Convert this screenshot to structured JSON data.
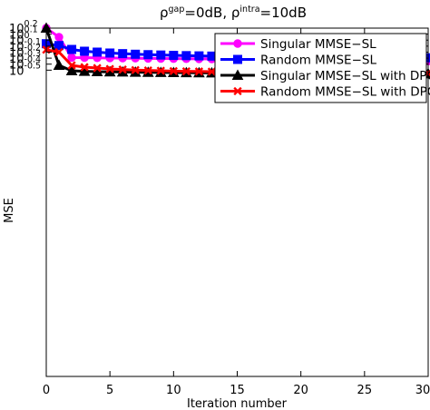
{
  "chart_data": {
    "type": "line",
    "title": {
      "rho1": "ρ",
      "sup1": "gap",
      "mid": "=0dB, ",
      "rho2": "ρ",
      "sup2": "intra",
      "end": "=10dB"
    },
    "xlabel": "Iteration number",
    "ylabel": "MSE",
    "xlim": [
      0,
      30
    ],
    "y_log_exponent_range": [
      -5.6,
      0.2
    ],
    "y_scale": "log",
    "x_ticks": [
      0,
      5,
      10,
      15,
      20,
      25,
      30
    ],
    "y_ticks": [
      {
        "value": 0.2,
        "base": "10",
        "exp": "0.2"
      },
      {
        "value": 0.1,
        "base": "10",
        "exp": "0.1"
      },
      {
        "value": 0,
        "base": "10",
        "exp": "0"
      },
      {
        "value": -0.1,
        "base": "10",
        "exp": "-0.1"
      },
      {
        "value": -0.2,
        "base": "10",
        "exp": "-0.2"
      },
      {
        "value": -0.3,
        "base": "10",
        "exp": "-0.3"
      },
      {
        "value": -0.4,
        "base": "10",
        "exp": "-0.4"
      },
      {
        "value": -0.5,
        "base": "10",
        "exp": "-0.5"
      }
    ],
    "grid": false,
    "legend_position": "top-right",
    "series": [
      {
        "name": "Singular MMSE−SL",
        "color": "#ff00ff",
        "marker": "circle",
        "x": [
          0,
          1,
          2,
          3,
          4,
          5,
          6,
          7,
          8,
          9,
          10,
          11,
          12,
          13,
          14,
          15,
          16,
          17,
          18,
          19,
          20,
          21,
          22,
          23,
          24,
          25,
          26,
          27,
          28,
          29,
          30
        ],
        "y": [
          0.2,
          0.05,
          -0.29,
          -0.292,
          -0.295,
          -0.298,
          -0.3,
          -0.302,
          -0.304,
          -0.306,
          -0.308,
          -0.31,
          -0.312,
          -0.314,
          -0.316,
          -0.318,
          -0.32,
          -0.322,
          -0.324,
          -0.326,
          -0.328,
          -0.33,
          -0.332,
          -0.334,
          -0.336,
          -0.338,
          -0.34,
          -0.342,
          -0.344,
          -0.346,
          -0.348
        ]
      },
      {
        "name": "Random MMSE−SL",
        "color": "#0000ff",
        "marker": "square",
        "x": [
          0,
          1,
          2,
          3,
          4,
          5,
          6,
          7,
          8,
          9,
          10,
          11,
          12,
          13,
          14,
          15,
          16,
          17,
          18,
          19,
          20,
          21,
          22,
          23,
          24,
          25,
          26,
          27,
          28,
          29,
          30
        ],
        "y": [
          -0.06,
          -0.09,
          -0.155,
          -0.185,
          -0.2,
          -0.215,
          -0.225,
          -0.235,
          -0.242,
          -0.248,
          -0.254,
          -0.258,
          -0.262,
          -0.266,
          -0.27,
          -0.273,
          -0.276,
          -0.278,
          -0.28,
          -0.282,
          -0.284,
          -0.285,
          -0.286,
          -0.287,
          -0.288,
          -0.289,
          -0.29,
          -0.291,
          -0.292,
          -0.293,
          -0.294
        ]
      },
      {
        "name": "Singular MMSE−SL with DPC",
        "color": "#000000",
        "marker": "triangle",
        "x": [
          0,
          1,
          2,
          3,
          4,
          5,
          6,
          7,
          8,
          9,
          10,
          11,
          12,
          13,
          14,
          15,
          16,
          17,
          18,
          19,
          20,
          21,
          22,
          23,
          24,
          25,
          26,
          27,
          28,
          29,
          30
        ],
        "y": [
          0.2,
          -0.42,
          -0.51,
          -0.52,
          -0.525,
          -0.528,
          -0.531,
          -0.534,
          -0.536,
          -0.538,
          -0.54,
          -0.542,
          -0.544,
          -0.546,
          -0.547,
          -0.548,
          -0.549,
          -0.55,
          -0.551,
          -0.552,
          -0.553,
          -0.554,
          -0.555,
          -0.556,
          -0.557,
          -0.558,
          -0.558,
          -0.559,
          -0.559,
          -0.56,
          -0.56
        ]
      },
      {
        "name": "Random MMSE−SL with DPC",
        "color": "#ff0000",
        "marker": "x",
        "x": [
          0,
          1,
          2,
          3,
          4,
          5,
          6,
          7,
          8,
          9,
          10,
          11,
          12,
          13,
          14,
          15,
          16,
          17,
          18,
          19,
          20,
          21,
          22,
          23,
          24,
          25,
          26,
          27,
          28,
          29,
          30
        ],
        "y": [
          -0.16,
          -0.2,
          -0.42,
          -0.45,
          -0.465,
          -0.48,
          -0.49,
          -0.498,
          -0.505,
          -0.51,
          -0.515,
          -0.519,
          -0.522,
          -0.525,
          -0.528,
          -0.53,
          -0.533,
          -0.535,
          -0.537,
          -0.539,
          -0.541,
          -0.542,
          -0.543,
          -0.544,
          -0.545,
          -0.546,
          -0.547,
          -0.547,
          -0.548,
          -0.548,
          -0.549
        ]
      }
    ]
  }
}
